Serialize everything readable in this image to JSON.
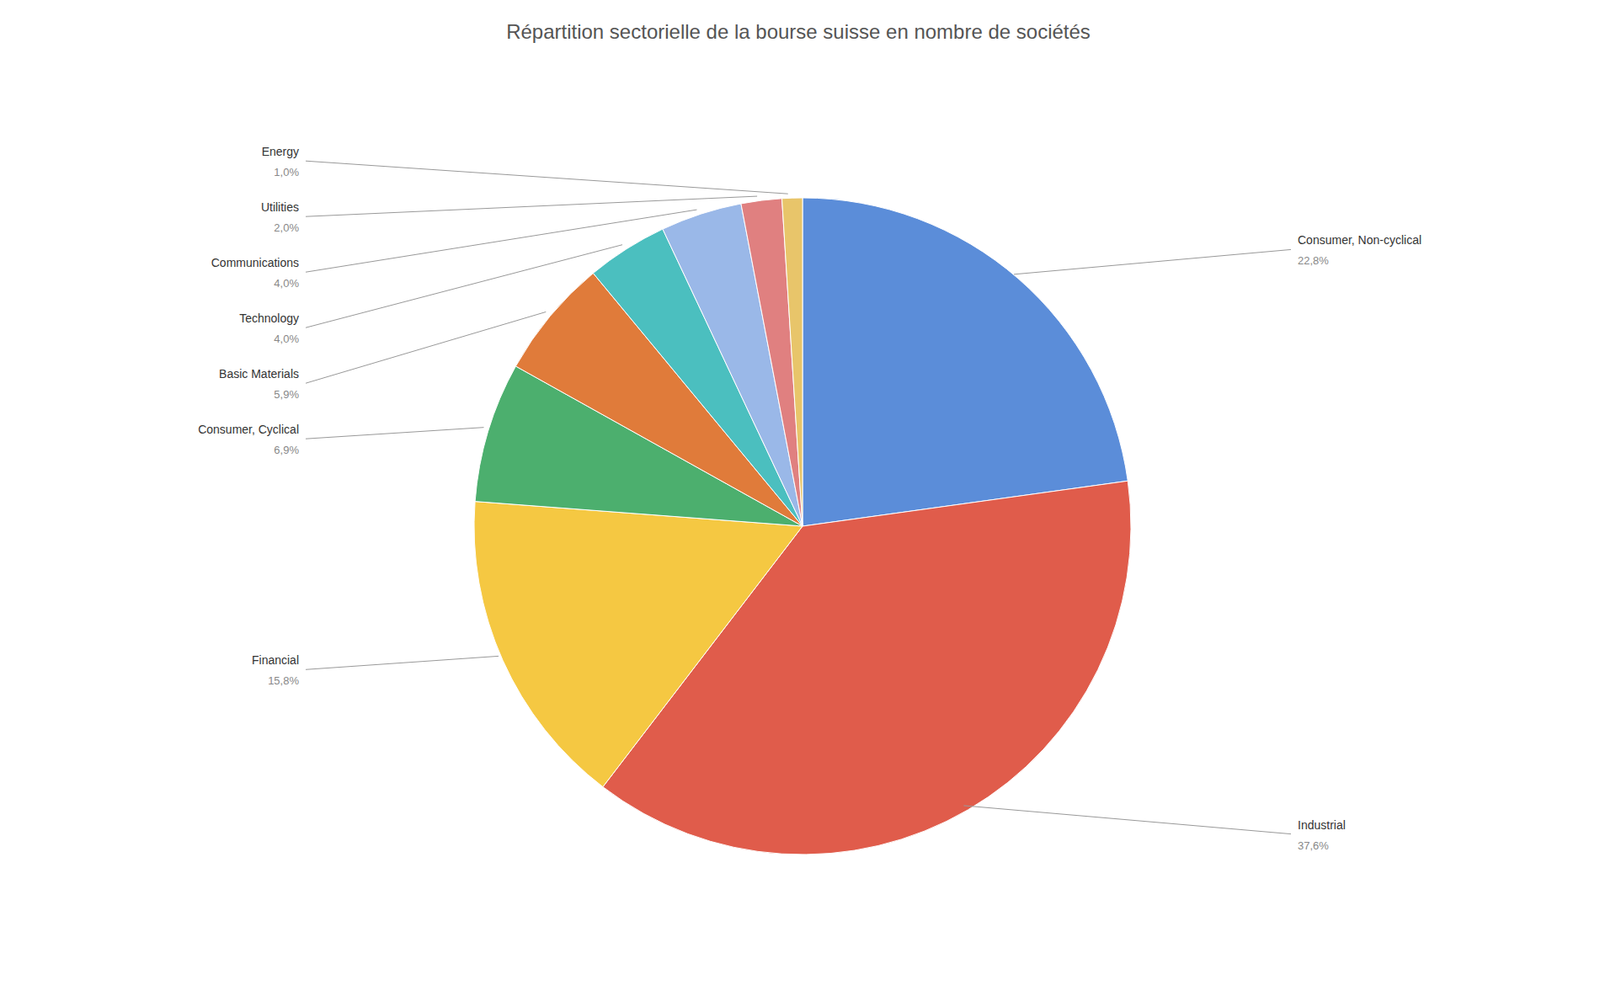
{
  "chart_data": {
    "type": "pie",
    "title": "Répartition sectorielle de la bourse suisse en nombre de sociétés",
    "categories": [
      "Consumer, Non-cyclical",
      "Industrial",
      "Financial",
      "Consumer, Cyclical",
      "Basic Materials",
      "Technology",
      "Communications",
      "Utilities",
      "Energy"
    ],
    "values": [
      22.8,
      37.6,
      15.8,
      6.9,
      5.9,
      4.0,
      4.0,
      2.0,
      1.0
    ],
    "value_labels": [
      "22,8%",
      "37,6%",
      "15,8%",
      "6,9%",
      "5,9%",
      "4,0%",
      "4,0%",
      "2,0%",
      "1,0%"
    ],
    "colors": [
      "#5B8DD9",
      "#E05C4B",
      "#F5C842",
      "#4CAF6E",
      "#E07B3A",
      "#4BBFBF",
      "#9AB8E8",
      "#E08080",
      "#E8C56A"
    ],
    "data_labels": true
  }
}
